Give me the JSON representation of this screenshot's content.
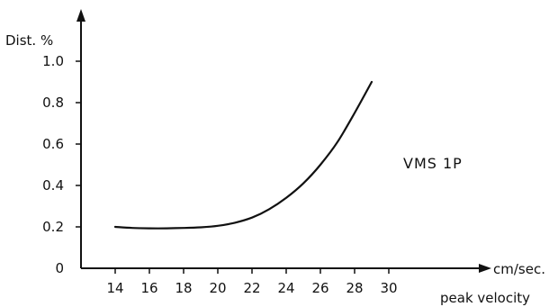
{
  "chart_data": {
    "type": "line",
    "title": "",
    "ylabel": "Dist. %",
    "xlabel_line1": "cm/sec.",
    "xlabel_line2": "peak velocity",
    "xlim": [
      12,
      31
    ],
    "ylim": [
      0,
      1.1
    ],
    "x_ticks": [
      14,
      16,
      18,
      20,
      22,
      24,
      26,
      28,
      30
    ],
    "y_ticks": [
      "0",
      "0.2",
      "0.4",
      "0.6",
      "0.8",
      "1.0"
    ],
    "grid": false,
    "legend": "none",
    "series": [
      {
        "name": "VMS 1P",
        "x": [
          14,
          15,
          16,
          17,
          18,
          19,
          20,
          21,
          22,
          23,
          24,
          25,
          26,
          27,
          28,
          29
        ],
        "y": [
          0.2,
          0.195,
          0.193,
          0.193,
          0.195,
          0.198,
          0.205,
          0.22,
          0.245,
          0.285,
          0.34,
          0.41,
          0.5,
          0.61,
          0.75,
          0.9
        ]
      }
    ],
    "colors": {
      "line": "#111111",
      "axis": "#111111"
    }
  }
}
